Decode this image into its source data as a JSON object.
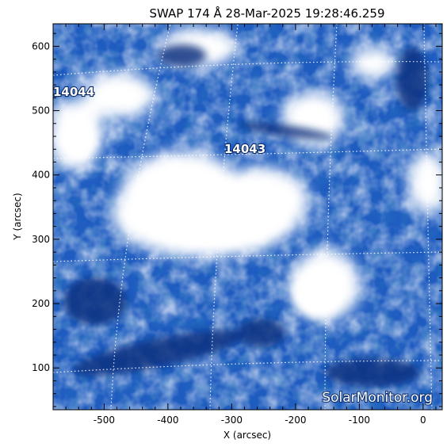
{
  "title": "SWAP 174 Å 28-Mar-2025 19:28:46.259",
  "xaxis": {
    "label": "X (arcsec)",
    "ticks": [
      "-500",
      "-400",
      "-300",
      "-200",
      "-100",
      "0"
    ],
    "range": [
      -580,
      30
    ]
  },
  "yaxis": {
    "label": "Y (arcsec)",
    "ticks": [
      "100",
      "200",
      "300",
      "400",
      "500",
      "600"
    ],
    "range": [
      35,
      635
    ]
  },
  "active_regions": [
    {
      "label": "14044"
    },
    {
      "label": "14043"
    }
  ],
  "watermark": "SolarMonitor.org",
  "colors": {
    "deep_blue": "#0b3d91",
    "mid_blue": "#2f6fd4",
    "light_blue": "#9cc4f2",
    "white": "#ffffff"
  }
}
